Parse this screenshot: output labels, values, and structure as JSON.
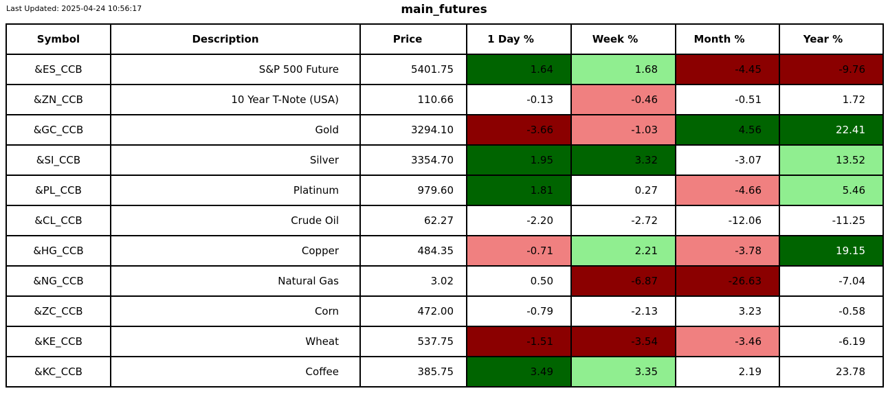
{
  "meta": {
    "last_updated": "Last Updated: 2025-04-24 10:56:17"
  },
  "chart_data": {
    "type": "table",
    "title": "main_futures",
    "columns": [
      "Symbol",
      "Description",
      "Price",
      "1 Day %",
      "Week %",
      "Month %",
      "Year %"
    ],
    "color_scale": {
      "dark_green": "#006400",
      "light_green": "#90ee90",
      "dark_red": "#8b0000",
      "light_red": "#f08080",
      "none": "#ffffff"
    },
    "rows": [
      {
        "symbol": "&ES_CCB",
        "description": "S&P 500 Future",
        "price": "5401.75",
        "pct": [
          {
            "value": "1.64",
            "bg": "dark_green",
            "fg": "black"
          },
          {
            "value": "1.68",
            "bg": "light_green",
            "fg": "black"
          },
          {
            "value": "-4.45",
            "bg": "dark_red",
            "fg": "black"
          },
          {
            "value": "-9.76",
            "bg": "dark_red",
            "fg": "black"
          }
        ]
      },
      {
        "symbol": "&ZN_CCB",
        "description": "10 Year T-Note (USA)",
        "price": "110.66",
        "pct": [
          {
            "value": "-0.13",
            "bg": "none",
            "fg": "black"
          },
          {
            "value": "-0.46",
            "bg": "light_red",
            "fg": "black"
          },
          {
            "value": "-0.51",
            "bg": "none",
            "fg": "black"
          },
          {
            "value": "1.72",
            "bg": "none",
            "fg": "black"
          }
        ]
      },
      {
        "symbol": "&GC_CCB",
        "description": "Gold",
        "price": "3294.10",
        "pct": [
          {
            "value": "-3.66",
            "bg": "dark_red",
            "fg": "black"
          },
          {
            "value": "-1.03",
            "bg": "light_red",
            "fg": "black"
          },
          {
            "value": "4.56",
            "bg": "dark_green",
            "fg": "black"
          },
          {
            "value": "22.41",
            "bg": "dark_green",
            "fg": "white"
          }
        ]
      },
      {
        "symbol": "&SI_CCB",
        "description": "Silver",
        "price": "3354.70",
        "pct": [
          {
            "value": "1.95",
            "bg": "dark_green",
            "fg": "black"
          },
          {
            "value": "3.32",
            "bg": "dark_green",
            "fg": "black"
          },
          {
            "value": "-3.07",
            "bg": "none",
            "fg": "black"
          },
          {
            "value": "13.52",
            "bg": "light_green",
            "fg": "black"
          }
        ]
      },
      {
        "symbol": "&PL_CCB",
        "description": "Platinum",
        "price": "979.60",
        "pct": [
          {
            "value": "1.81",
            "bg": "dark_green",
            "fg": "black"
          },
          {
            "value": "0.27",
            "bg": "none",
            "fg": "black"
          },
          {
            "value": "-4.66",
            "bg": "light_red",
            "fg": "black"
          },
          {
            "value": "5.46",
            "bg": "light_green",
            "fg": "black"
          }
        ]
      },
      {
        "symbol": "&CL_CCB",
        "description": "Crude Oil",
        "price": "62.27",
        "pct": [
          {
            "value": "-2.20",
            "bg": "none",
            "fg": "black"
          },
          {
            "value": "-2.72",
            "bg": "none",
            "fg": "black"
          },
          {
            "value": "-12.06",
            "bg": "none",
            "fg": "black"
          },
          {
            "value": "-11.25",
            "bg": "none",
            "fg": "black"
          }
        ]
      },
      {
        "symbol": "&HG_CCB",
        "description": "Copper",
        "price": "484.35",
        "pct": [
          {
            "value": "-0.71",
            "bg": "light_red",
            "fg": "black"
          },
          {
            "value": "2.21",
            "bg": "light_green",
            "fg": "black"
          },
          {
            "value": "-3.78",
            "bg": "light_red",
            "fg": "black"
          },
          {
            "value": "19.15",
            "bg": "dark_green",
            "fg": "white"
          }
        ]
      },
      {
        "symbol": "&NG_CCB",
        "description": "Natural Gas",
        "price": "3.02",
        "pct": [
          {
            "value": "0.50",
            "bg": "none",
            "fg": "black"
          },
          {
            "value": "-6.87",
            "bg": "dark_red",
            "fg": "black"
          },
          {
            "value": "-26.63",
            "bg": "dark_red",
            "fg": "black"
          },
          {
            "value": "-7.04",
            "bg": "none",
            "fg": "black"
          }
        ]
      },
      {
        "symbol": "&ZC_CCB",
        "description": "Corn",
        "price": "472.00",
        "pct": [
          {
            "value": "-0.79",
            "bg": "none",
            "fg": "black"
          },
          {
            "value": "-2.13",
            "bg": "none",
            "fg": "black"
          },
          {
            "value": "3.23",
            "bg": "none",
            "fg": "black"
          },
          {
            "value": "-0.58",
            "bg": "none",
            "fg": "black"
          }
        ]
      },
      {
        "symbol": "&KE_CCB",
        "description": "Wheat",
        "price": "537.75",
        "pct": [
          {
            "value": "-1.51",
            "bg": "dark_red",
            "fg": "black"
          },
          {
            "value": "-3.54",
            "bg": "dark_red",
            "fg": "black"
          },
          {
            "value": "-3.46",
            "bg": "light_red",
            "fg": "black"
          },
          {
            "value": "-6.19",
            "bg": "none",
            "fg": "black"
          }
        ]
      },
      {
        "symbol": "&KC_CCB",
        "description": "Coffee",
        "price": "385.75",
        "pct": [
          {
            "value": "3.49",
            "bg": "dark_green",
            "fg": "black"
          },
          {
            "value": "3.35",
            "bg": "light_green",
            "fg": "black"
          },
          {
            "value": "2.19",
            "bg": "none",
            "fg": "black"
          },
          {
            "value": "23.78",
            "bg": "none",
            "fg": "black"
          }
        ]
      }
    ]
  }
}
